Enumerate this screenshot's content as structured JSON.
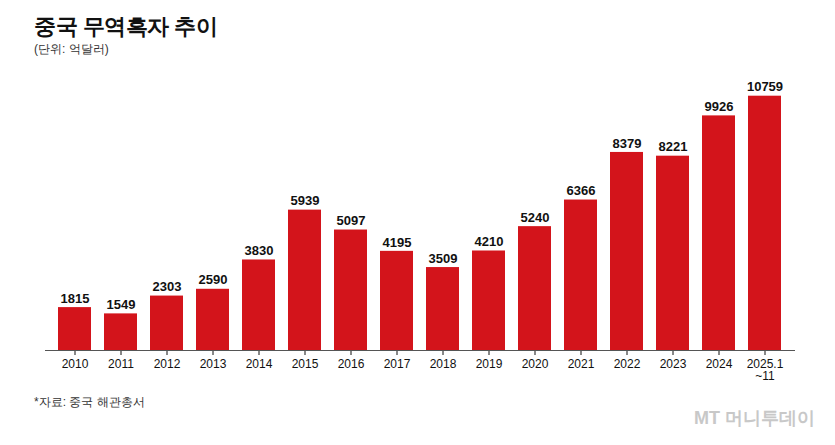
{
  "chart_data": {
    "type": "bar",
    "title": "중국 무역흑자 추이",
    "subtitle": "(단위: 억달러)",
    "categories": [
      "2010",
      "2011",
      "2012",
      "2013",
      "2014",
      "2015",
      "2016",
      "2017",
      "2018",
      "2019",
      "2020",
      "2021",
      "2022",
      "2023",
      "2024",
      "2025.1~11"
    ],
    "values": [
      1815,
      1549,
      2303,
      2590,
      3830,
      5939,
      5097,
      4195,
      3509,
      4210,
      5240,
      6366,
      8379,
      8221,
      9926,
      10759
    ],
    "color": "#d3141b",
    "ylim": [
      0,
      11000
    ],
    "data_labels": true,
    "tick_labels": "x",
    "grid": false,
    "source": "*자료: 중국 해관총서",
    "credit": "MT 머니투데이"
  }
}
